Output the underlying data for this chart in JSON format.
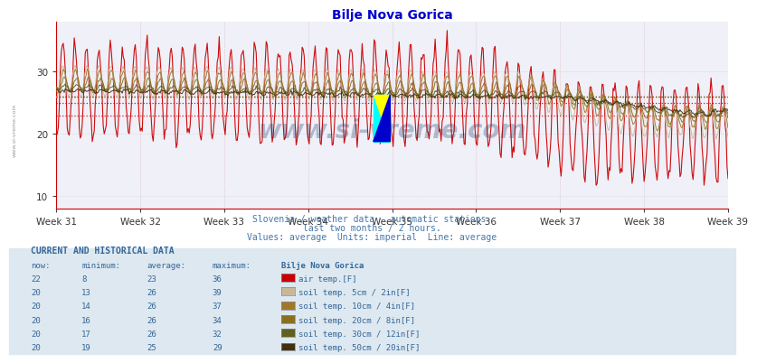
{
  "title": "Bilje Nova Gorica",
  "subtitle1": "Slovenia / weather data - automatic stations.",
  "subtitle2": "last two months / 2 hours.",
  "subtitle3": "Values: average  Units: imperial  Line: average",
  "x_labels": [
    "Week 31",
    "Week 32",
    "Week 33",
    "Week 34",
    "Week 35",
    "Week 36",
    "Week 37",
    "Week 38",
    "Week 39"
  ],
  "x_ticks_norm": [
    0.0,
    0.125,
    0.25,
    0.375,
    0.5,
    0.625,
    0.75,
    0.875,
    1.0
  ],
  "ylim": [
    8,
    38
  ],
  "yticks": [
    10,
    20,
    30
  ],
  "title_color": "#0000cc",
  "subtitle_color": "#4477aa",
  "axis_color": "#cc0000",
  "bg_color": "#ffffff",
  "plot_bg": "#f0f0f8",
  "series_colors": [
    "#cc0000",
    "#c8b89a",
    "#a07828",
    "#887020",
    "#606020",
    "#403010"
  ],
  "series_names": [
    "air temp.[F]",
    "soil temp. 5cm / 2in[F]",
    "soil temp. 10cm / 4in[F]",
    "soil temp. 20cm / 8in[F]",
    "soil temp. 30cm / 12in[F]",
    "soil temp. 50cm / 20in[F]"
  ],
  "series_avg": [
    23,
    26,
    26,
    26,
    26,
    25
  ],
  "series_min": [
    8,
    13,
    14,
    16,
    17,
    19
  ],
  "series_max": [
    36,
    39,
    37,
    34,
    32,
    29
  ],
  "series_now": [
    22,
    20,
    20,
    20,
    20,
    20
  ],
  "table_header_color": "#336699",
  "table_value_color": "#336699",
  "watermark": "www.si-vreme.com",
  "watermark_color": "#1a3a6a",
  "left_label": "www.si-vreme.com",
  "n_weeks": 8,
  "pts_per_week": 84
}
